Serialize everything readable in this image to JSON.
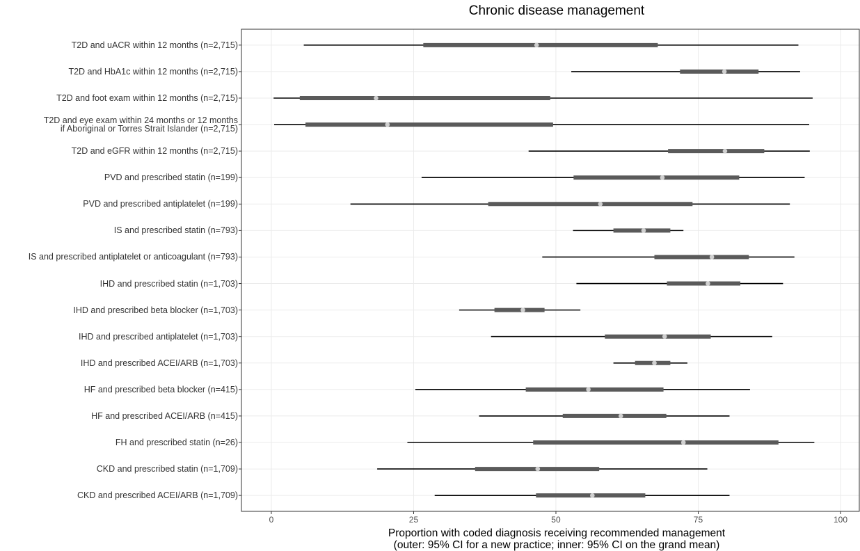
{
  "chart_data": {
    "type": "interval",
    "title": "Chronic disease management",
    "x_label": "Proportion with coded diagnosis receiving recommended management\n(outer: 95% CI for a new practice; inner: 95% CI on the grand mean)",
    "categories": [
      "T2D and uACR within 12 months (n=2,715)",
      "T2D and HbA1c within 12 months (n=2,715)",
      "T2D and foot exam within 12 months (n=2,715)",
      "T2D and eye exam within 24 months or 12 months\nif Aboriginal or Torres Strait Islander (n=2,715)",
      "T2D and eGFR within 12 months (n=2,715)",
      "PVD and prescribed statin (n=199)",
      "PVD and prescribed antiplatelet (n=199)",
      "IS and prescribed statin (n=793)",
      "IS and prescribed antiplatelet or anticoagulant (n=793)",
      "IHD and prescribed statin (n=1,703)",
      "IHD and prescribed beta blocker (n=1,703)",
      "IHD and prescribed antiplatelet (n=1,703)",
      "IHD and prescribed ACEI/ARB (n=1,703)",
      "HF and prescribed beta blocker (n=415)",
      "HF and prescribed ACEI/ARB (n=415)",
      "FH and prescribed statin (n=26)",
      "CKD and prescribed statin (n=1,709)",
      "CKD and prescribed ACEI/ARB (n=1,709)"
    ],
    "outer_low": [
      5.7,
      52.7,
      0.4,
      0.5,
      45.2,
      26.4,
      13.9,
      53.0,
      47.6,
      53.6,
      33.0,
      38.6,
      60.1,
      25.3,
      36.5,
      23.9,
      18.6,
      28.7
    ],
    "outer_high": [
      92.6,
      92.9,
      95.1,
      94.5,
      94.6,
      93.7,
      91.1,
      72.4,
      91.9,
      89.9,
      54.3,
      88.0,
      73.1,
      84.1,
      80.5,
      95.4,
      76.6,
      80.5
    ],
    "inner_low": [
      26.7,
      71.8,
      5.0,
      6.0,
      69.7,
      53.1,
      38.1,
      60.1,
      67.3,
      69.5,
      39.2,
      58.6,
      63.9,
      44.7,
      51.2,
      46.0,
      35.8,
      46.5
    ],
    "inner_high": [
      67.9,
      85.6,
      49.0,
      49.5,
      86.6,
      82.2,
      74.0,
      70.1,
      83.9,
      82.4,
      48.0,
      77.2,
      70.1,
      68.9,
      69.4,
      89.1,
      57.6,
      65.7
    ],
    "mean": [
      46.6,
      79.6,
      18.4,
      20.4,
      79.7,
      68.7,
      57.8,
      65.4,
      77.4,
      76.7,
      44.2,
      69.1,
      67.3,
      55.7,
      61.4,
      72.4,
      46.8,
      56.4
    ],
    "outer_color": "#000000",
    "inner_color": "#5a5a5a",
    "mean_color": "#d0d0d0",
    "xlim": [
      -5.25,
      103.3
    ],
    "xticks": [
      0,
      25,
      50,
      75,
      100
    ],
    "grid": true
  }
}
